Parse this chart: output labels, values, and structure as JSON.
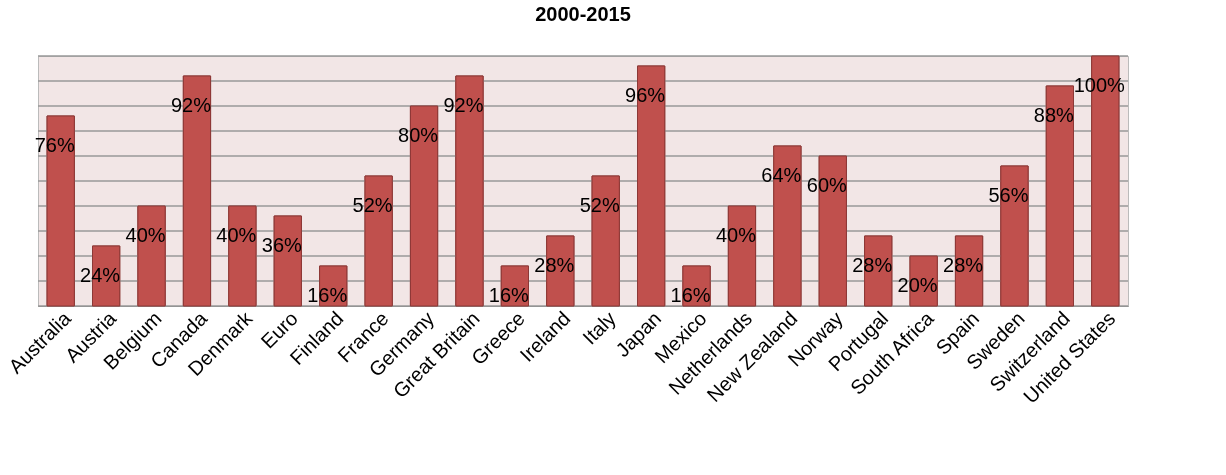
{
  "chart_data": {
    "type": "bar",
    "title": "2000-2015",
    "categories": [
      "Australia",
      "Austria",
      "Belgium",
      "Canada",
      "Denmark",
      "Euro",
      "Finland",
      "France",
      "Germany",
      "Great Britain",
      "Greece",
      "Ireland",
      "Italy",
      "Japan",
      "Mexico",
      "Netherlands",
      "New Zealand",
      "Norway",
      "Portugal",
      "South Africa",
      "Spain",
      "Sweden",
      "Switzerland",
      "United States"
    ],
    "values": [
      76,
      24,
      40,
      92,
      40,
      36,
      16,
      52,
      80,
      92,
      16,
      28,
      52,
      96,
      16,
      40,
      64,
      60,
      28,
      20,
      28,
      56,
      88,
      100
    ],
    "value_labels": [
      "76%",
      "24%",
      "40%",
      "92%",
      "40%",
      "36%",
      "16%",
      "52%",
      "80%",
      "92%",
      "16%",
      "28%",
      "52%",
      "96%",
      "16%",
      "40%",
      "64%",
      "60%",
      "28%",
      "20%",
      "28%",
      "56%",
      "88%",
      "100%"
    ],
    "color": "#c0504d",
    "ylim": [
      0,
      100
    ],
    "yticks": [
      {
        "value": 0,
        "label": null
      },
      {
        "value": 10,
        "label": null
      },
      {
        "value": 20,
        "label": null
      },
      {
        "value": 30,
        "label": null
      },
      {
        "value": 40,
        "label": null
      },
      {
        "value": 50,
        "label": null
      },
      {
        "value": 60,
        "label": null
      },
      {
        "value": 70,
        "label": null
      },
      {
        "value": 80,
        "label": null
      },
      {
        "value": 90,
        "label": null
      },
      {
        "value": 100,
        "label": null
      }
    ],
    "grid": "y",
    "tick_labels": "x"
  }
}
